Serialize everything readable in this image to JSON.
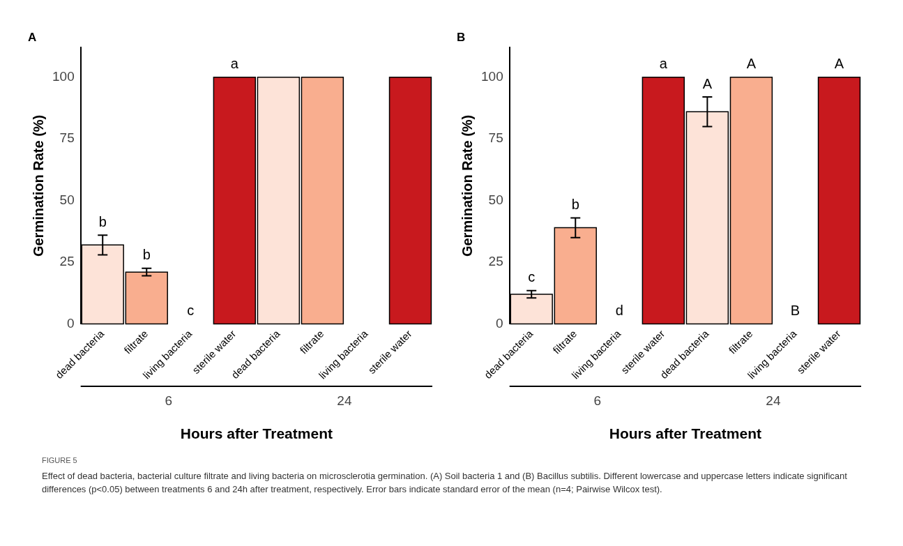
{
  "chart_data": [
    {
      "type": "bar",
      "title": "A",
      "xlabel": "Hours after Treatment",
      "ylabel": "Germination Rate (%)",
      "categories": [
        "dead bacteria",
        "filtrate",
        "living bacteria",
        "sterile water",
        "dead bacteria",
        "filtrate",
        "living bacteria",
        "sterile water"
      ],
      "values": [
        32,
        21,
        0,
        100,
        100,
        100,
        0,
        100
      ],
      "errors": [
        4,
        1.5,
        null,
        null,
        null,
        null,
        null,
        null
      ],
      "colors": [
        "#fde3d8",
        "#f9ae8f",
        "#fc8a6a",
        "#c8191e",
        "#fde3d8",
        "#f9ae8f",
        "#fc8a6a",
        "#c8191e"
      ],
      "value_labels": [
        "b",
        "b",
        "c",
        "a",
        null,
        null,
        null,
        null
      ],
      "ylim": [
        0,
        112
      ],
      "yticks": [
        0,
        25,
        50,
        75,
        100
      ],
      "grid": false,
      "legend": false,
      "annotations": [
        "6",
        "24",
        "FIGURE 5",
        "Effect of dead bacteria, bacterial culture filtrate and living bacteria on microsclerotia germination. (A) Soil bacteria 1 and (B) Bacillus subtilis. Different lowercase and uppercase letters indicate significant differences (p<0.05) between treatments 6 and 24h after treatment, respectively. Error bars indicate standard error of the mean (n=4; Pairwise Wilcox test)."
      ]
    },
    {
      "type": "bar",
      "title": "B",
      "xlabel": "Hours after Treatment",
      "ylabel": "Germination Rate (%)",
      "categories": [
        "dead bacteria",
        "filtrate",
        "living bacteria",
        "sterile water",
        "dead bacteria",
        "filtrate",
        "living bacteria",
        "sterile water"
      ],
      "values": [
        12,
        39,
        0,
        100,
        86,
        100,
        0,
        100
      ],
      "errors": [
        1.5,
        4,
        null,
        null,
        6,
        null,
        null,
        null
      ],
      "colors": [
        "#fde3d8",
        "#f9ae8f",
        "#fc8a6a",
        "#c8191e",
        "#fde3d8",
        "#f9ae8f",
        "#fc8a6a",
        "#c8191e"
      ],
      "value_labels": [
        "c",
        "b",
        "d",
        "a",
        "A",
        "A",
        "B",
        "A"
      ],
      "ylim": [
        0,
        112
      ],
      "yticks": [
        0,
        25,
        50,
        75,
        100
      ],
      "grid": false,
      "legend": false,
      "annotations": [
        "6",
        "24"
      ]
    }
  ]
}
